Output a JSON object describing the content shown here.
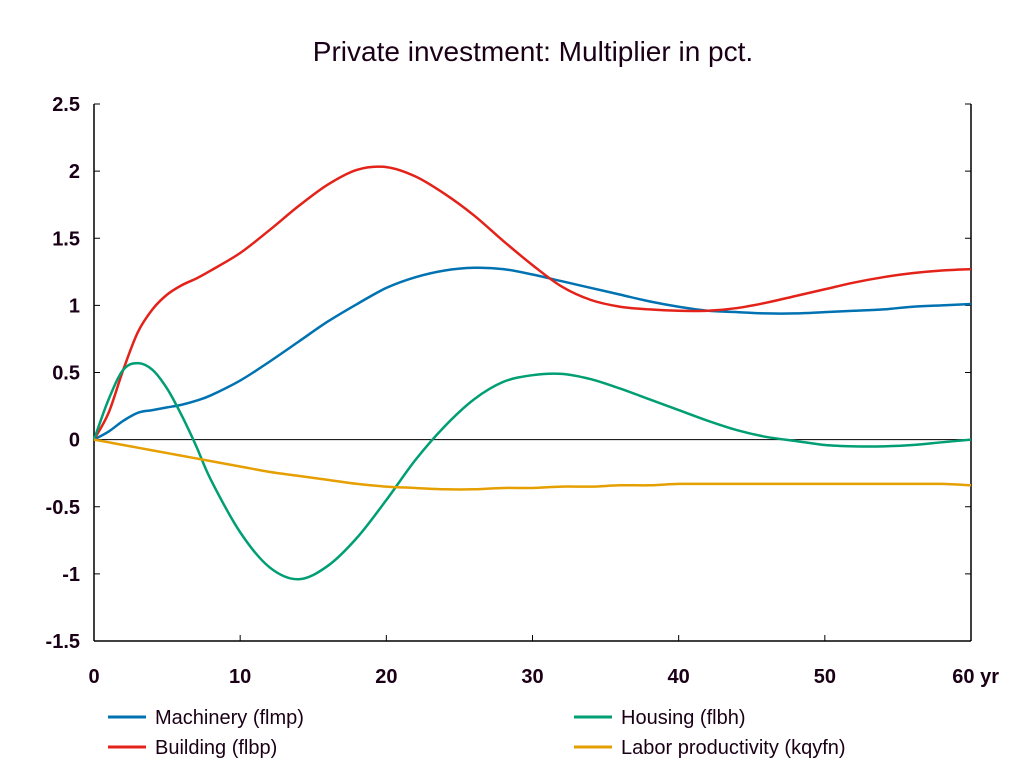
{
  "chart_data": {
    "type": "line",
    "title": "Private investment: Multiplier in pct.",
    "xlabel": "",
    "ylabel": "",
    "x_unit_label": "yr",
    "xlim": [
      0,
      60
    ],
    "ylim": [
      -1.5,
      2.5
    ],
    "xticks": [
      0,
      10,
      20,
      30,
      40,
      50,
      60
    ],
    "xtick_labels": [
      "0",
      "10",
      "20",
      "30",
      "40",
      "50",
      "60 yr"
    ],
    "yticks": [
      2.5,
      2,
      1.5,
      1,
      0.5,
      0,
      -0.5,
      -1,
      -1.5
    ],
    "ytick_labels": [
      "2.5",
      "2",
      "1.5",
      "1",
      "0.5",
      "0",
      "-0.5",
      "-1",
      "-1.5"
    ],
    "zero_line": true,
    "grid": false,
    "legend_position": "bottom",
    "x": [
      0,
      1,
      2,
      3,
      4,
      5,
      6,
      7,
      8,
      10,
      12,
      14,
      16,
      18,
      20,
      22,
      24,
      26,
      28,
      30,
      32,
      34,
      36,
      38,
      40,
      42,
      44,
      46,
      48,
      50,
      52,
      54,
      56,
      58,
      60
    ],
    "series": [
      {
        "name": "Machinery (flmp)",
        "color": "#0072b2",
        "values": [
          0,
          0.06,
          0.14,
          0.2,
          0.22,
          0.24,
          0.26,
          0.29,
          0.33,
          0.44,
          0.58,
          0.73,
          0.88,
          1.01,
          1.13,
          1.21,
          1.26,
          1.28,
          1.27,
          1.23,
          1.18,
          1.13,
          1.08,
          1.03,
          0.99,
          0.96,
          0.95,
          0.94,
          0.94,
          0.95,
          0.96,
          0.97,
          0.99,
          1.0,
          1.01
        ]
      },
      {
        "name": "Building (flbp)",
        "color": "#e32219",
        "values": [
          0,
          0.2,
          0.52,
          0.8,
          0.97,
          1.08,
          1.15,
          1.2,
          1.26,
          1.39,
          1.56,
          1.74,
          1.9,
          2.01,
          2.03,
          1.96,
          1.83,
          1.67,
          1.48,
          1.3,
          1.14,
          1.04,
          0.99,
          0.97,
          0.96,
          0.96,
          0.98,
          1.02,
          1.07,
          1.12,
          1.17,
          1.21,
          1.24,
          1.26,
          1.27
        ]
      },
      {
        "name": "Housing (flbh)",
        "color": "#009e73",
        "values": [
          0,
          0.3,
          0.52,
          0.57,
          0.52,
          0.38,
          0.18,
          -0.05,
          -0.3,
          -0.69,
          -0.95,
          -1.04,
          -0.94,
          -0.73,
          -0.45,
          -0.15,
          0.1,
          0.3,
          0.43,
          0.48,
          0.49,
          0.45,
          0.38,
          0.3,
          0.22,
          0.14,
          0.07,
          0.02,
          -0.01,
          -0.04,
          -0.05,
          -0.05,
          -0.04,
          -0.02,
          0.0
        ]
      },
      {
        "name": "Labor productivity (kqyfn)",
        "color": "#e69f00",
        "values": [
          0,
          -0.02,
          -0.04,
          -0.06,
          -0.08,
          -0.1,
          -0.12,
          -0.14,
          -0.16,
          -0.2,
          -0.24,
          -0.27,
          -0.3,
          -0.33,
          -0.35,
          -0.36,
          -0.37,
          -0.37,
          -0.36,
          -0.36,
          -0.35,
          -0.35,
          -0.34,
          -0.34,
          -0.33,
          -0.33,
          -0.33,
          -0.33,
          -0.33,
          -0.33,
          -0.33,
          -0.33,
          -0.33,
          -0.33,
          -0.34
        ]
      }
    ]
  },
  "legend": [
    {
      "label": "Machinery (flmp)",
      "color": "#0072b2"
    },
    {
      "label": "Housing (flbh)",
      "color": "#009e73"
    },
    {
      "label": "Building (flbp)",
      "color": "#e32219"
    },
    {
      "label": "Labor productivity (kqyfn)",
      "color": "#e69f00"
    }
  ]
}
